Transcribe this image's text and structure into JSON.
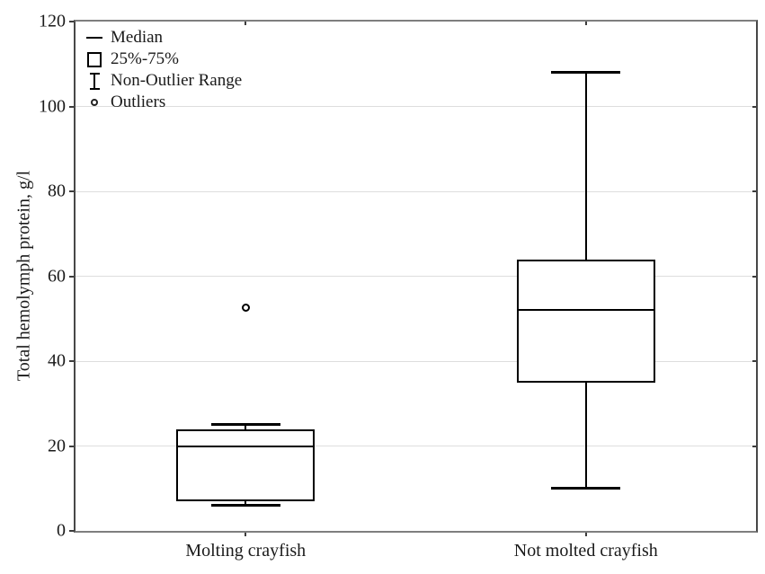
{
  "legend": {
    "items": [
      {
        "icon": "median-line-icon",
        "label": "Median"
      },
      {
        "icon": "box-icon",
        "label": "25%-75%"
      },
      {
        "icon": "non-outlier-range-icon",
        "label": "Non-Outlier Range"
      },
      {
        "icon": "outlier-circle-icon",
        "label": "Outliers"
      }
    ]
  },
  "chart_data": {
    "type": "boxplot",
    "title": "",
    "xlabel": "",
    "ylabel": "Total hemolymph protein, g/l",
    "ylim": [
      0,
      120
    ],
    "yticks": [
      0,
      20,
      40,
      60,
      80,
      100,
      120
    ],
    "grid": true,
    "legend_position": "top-left",
    "categories": [
      "Molting crayfish",
      "Not molted crayfish"
    ],
    "series": [
      {
        "name": "Molting crayfish",
        "whisker_low": 6,
        "q1": 7,
        "median": 20,
        "q3": 24,
        "whisker_high": 25,
        "outliers": [
          52.5
        ]
      },
      {
        "name": "Not molted crayfish",
        "whisker_low": 10,
        "q1": 35,
        "median": 52,
        "q3": 64,
        "whisker_high": 108,
        "outliers": []
      }
    ],
    "colors": {
      "box_fill": "#ffffff",
      "box_border": "#000000",
      "median": "#000000",
      "whisker": "#000000",
      "grid": "#dedede",
      "tick": "#3c3c3c",
      "text": "#1a1a1a",
      "background": "#ffffff"
    }
  }
}
